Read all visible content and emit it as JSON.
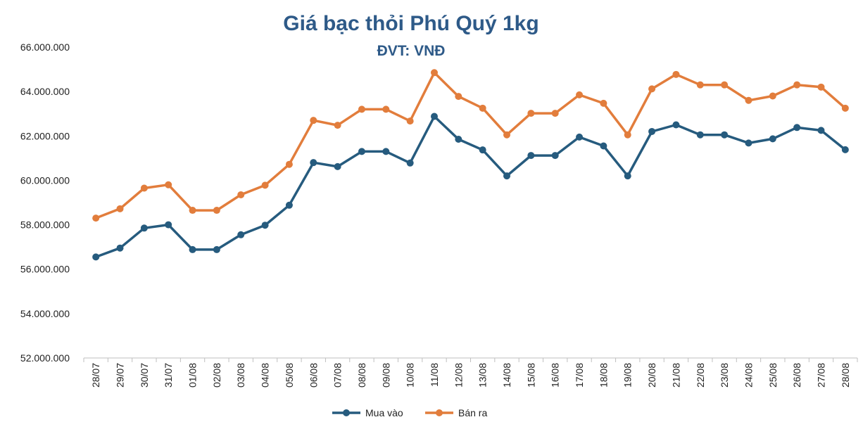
{
  "chart_data": {
    "type": "line",
    "title": "Giá bạc thỏi Phú Quý 1kg",
    "subtitle": "ĐVT: VNĐ",
    "xlabel": "",
    "ylabel": "",
    "ylim": [
      52000000,
      66000000
    ],
    "yticks": [
      52000000,
      54000000,
      56000000,
      58000000,
      60000000,
      62000000,
      64000000,
      66000000
    ],
    "ytick_labels": [
      "52.000.000",
      "54.000.000",
      "56.000.000",
      "58.000.000",
      "60.000.000",
      "62.000.000",
      "64.000.000",
      "66.000.000"
    ],
    "grid": false,
    "legend_position": "bottom",
    "categories": [
      "28/07",
      "29/07",
      "30/07",
      "31/07",
      "01/08",
      "02/08",
      "03/08",
      "04/08",
      "05/08",
      "06/08",
      "07/08",
      "08/08",
      "09/08",
      "10/08",
      "11/08",
      "12/08",
      "13/08",
      "14/08",
      "15/08",
      "16/08",
      "17/08",
      "18/08",
      "19/08",
      "20/08",
      "21/08",
      "22/08",
      "23/08",
      "24/08",
      "25/08",
      "26/08",
      "27/08",
      "28/08"
    ],
    "series": [
      {
        "name": "Mua vào",
        "color": "#265B7E",
        "values": [
          56550000,
          56950000,
          57850000,
          58000000,
          56880000,
          56880000,
          57550000,
          57980000,
          58880000,
          60800000,
          60620000,
          61300000,
          61300000,
          60780000,
          62880000,
          61850000,
          61370000,
          60200000,
          61120000,
          61120000,
          61950000,
          61550000,
          60200000,
          62200000,
          62500000,
          62050000,
          62050000,
          61680000,
          61870000,
          62380000,
          62250000,
          61380000
        ]
      },
      {
        "name": "Bán ra",
        "color": "#E27D3C",
        "values": [
          58300000,
          58720000,
          59650000,
          59800000,
          58650000,
          58650000,
          59350000,
          59780000,
          60720000,
          62700000,
          62480000,
          63200000,
          63200000,
          62670000,
          64850000,
          63780000,
          63250000,
          62050000,
          63020000,
          63020000,
          63850000,
          63470000,
          62050000,
          64120000,
          64770000,
          64300000,
          64300000,
          63600000,
          63800000,
          64300000,
          64200000,
          63250000
        ]
      }
    ]
  }
}
